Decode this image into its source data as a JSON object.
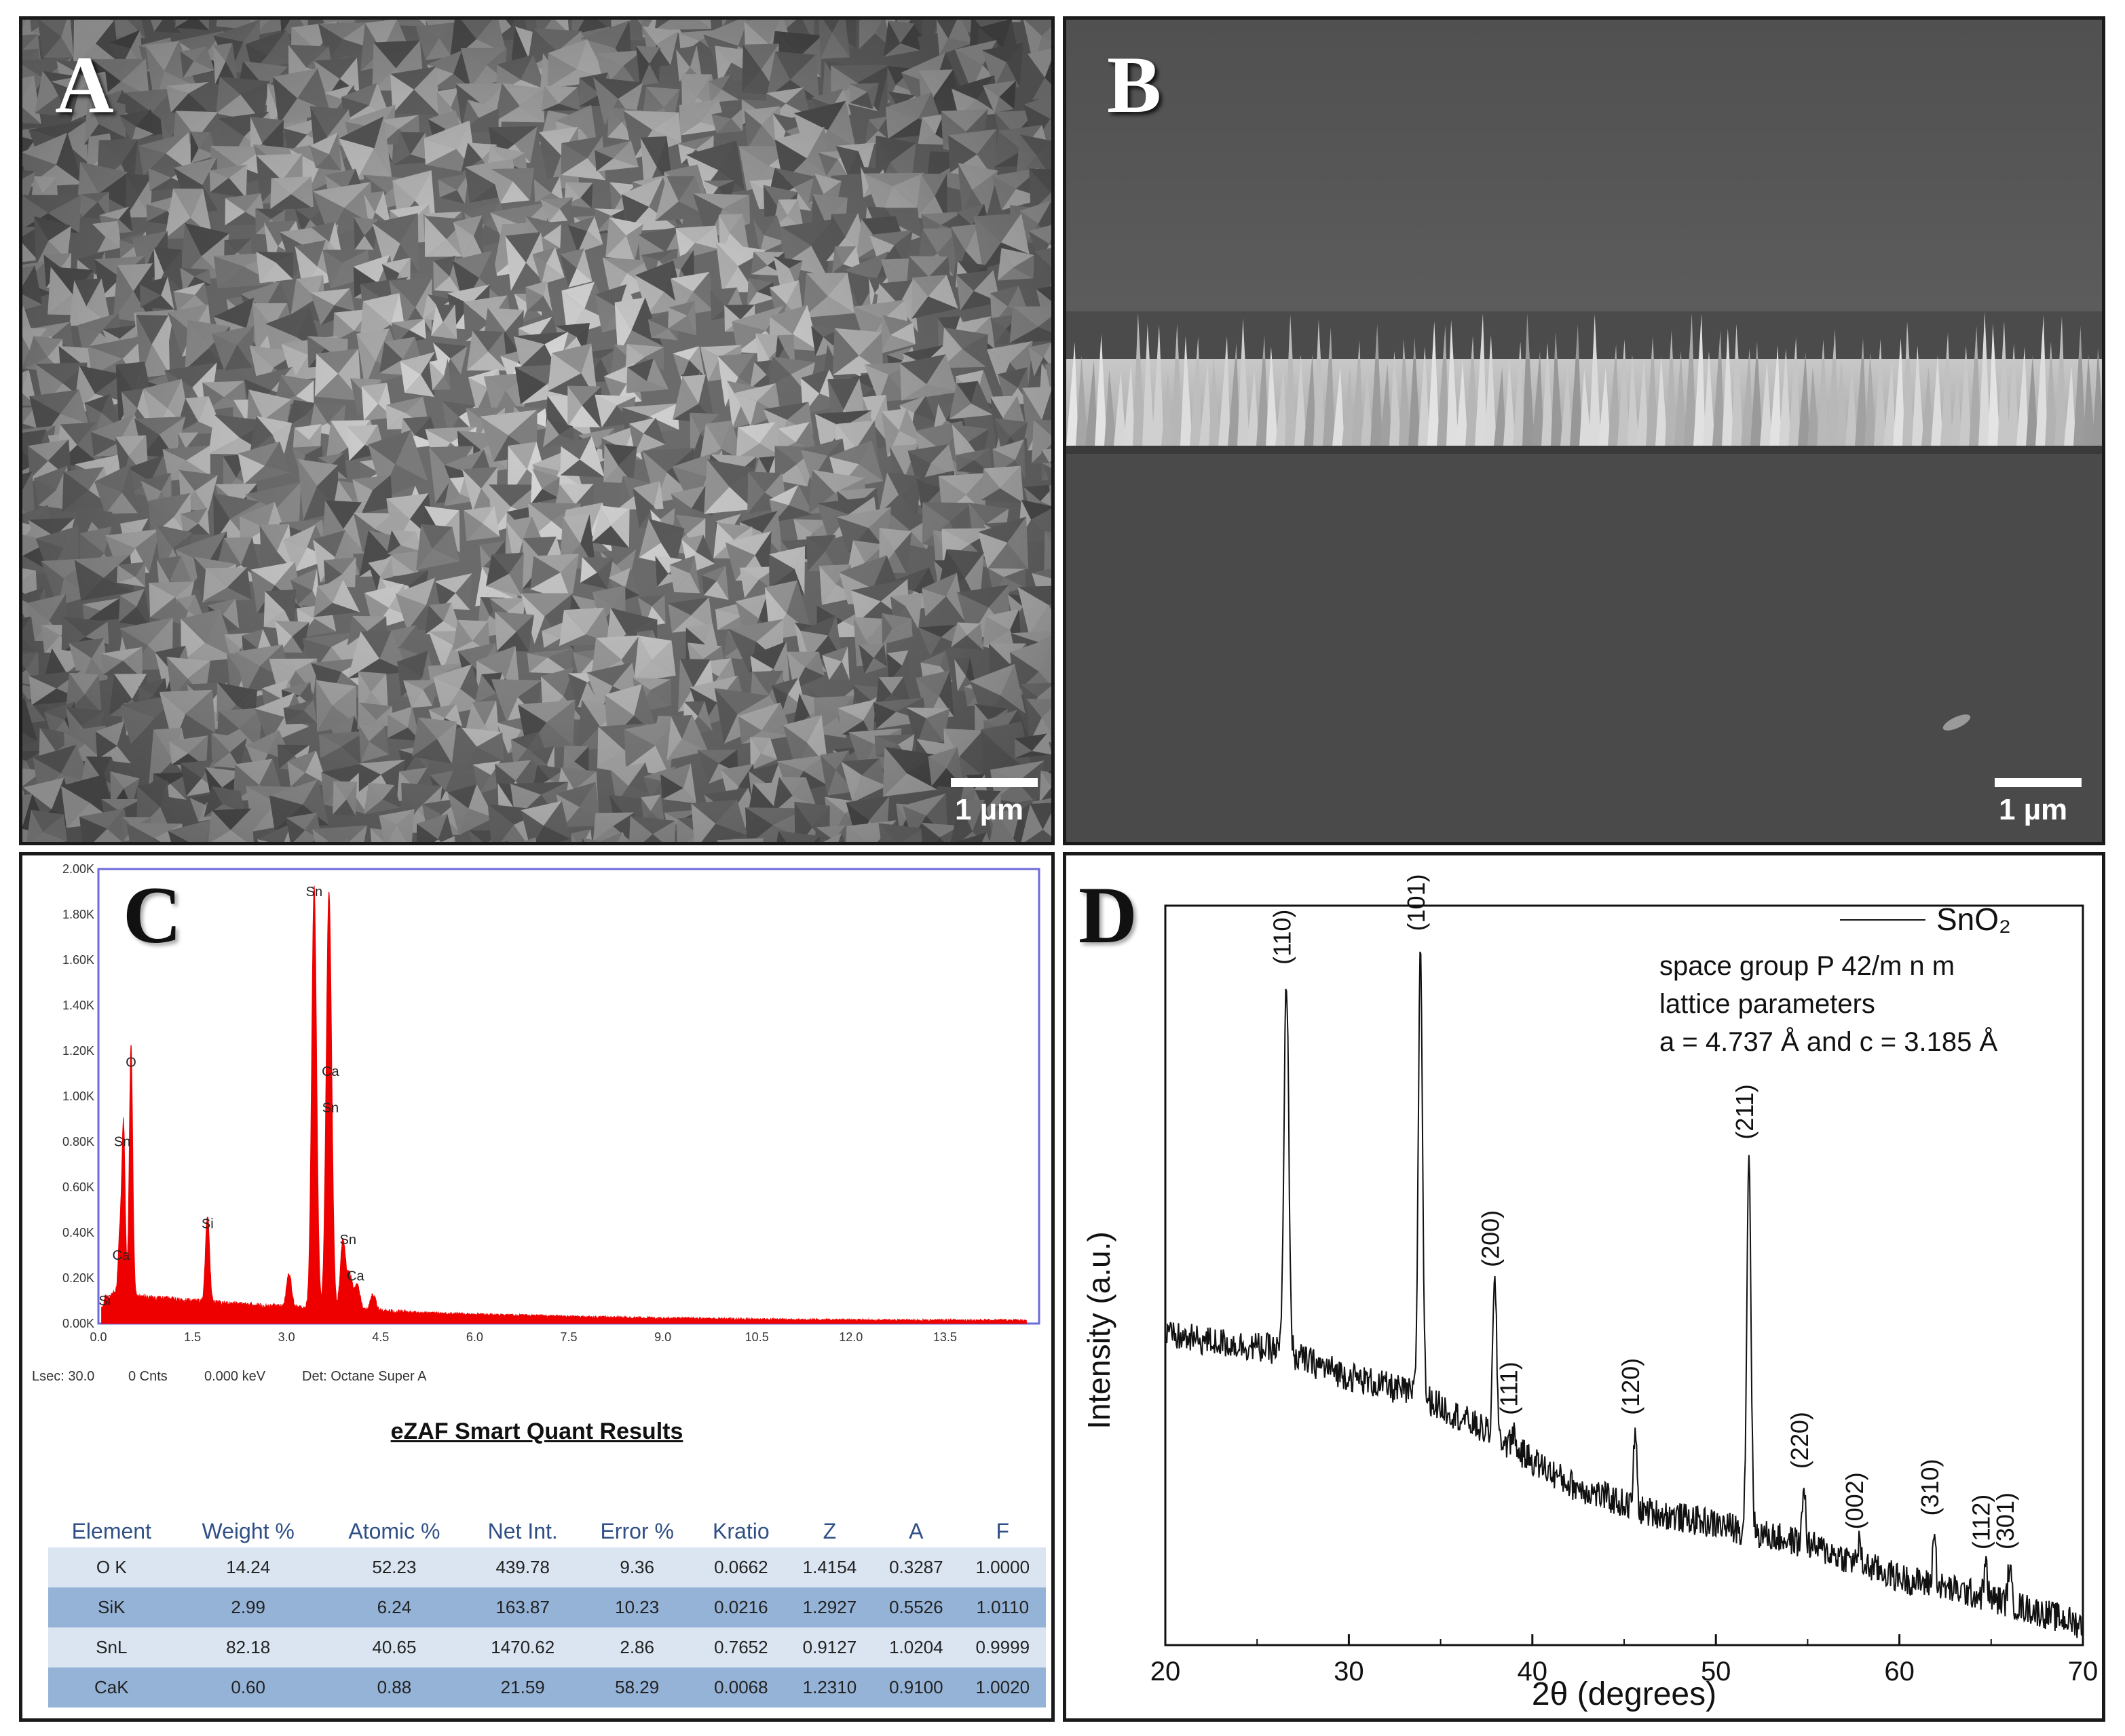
{
  "panels": {
    "a": {
      "letter": "A",
      "scale_bar": "1 µm"
    },
    "b": {
      "letter": "B",
      "scale_bar": "1 µm"
    },
    "c": {
      "letter": "C"
    },
    "d": {
      "letter": "D"
    }
  },
  "eds": {
    "status": {
      "lsec": "Lsec: 30.0",
      "cnts": "0 Cnts",
      "kev": "0.000 keV",
      "det": "Det: Octane Super A"
    },
    "quant_title": "eZAF Smart Quant Results",
    "columns": [
      "Element",
      "Weight %",
      "Atomic %",
      "Net Int.",
      "Error %",
      "Kratio",
      "Z",
      "A",
      "F"
    ],
    "rows": [
      [
        "O K",
        "14.24",
        "52.23",
        "439.78",
        "9.36",
        "0.0662",
        "1.4154",
        "0.3287",
        "1.0000"
      ],
      [
        "SiK",
        "2.99",
        "6.24",
        "163.87",
        "10.23",
        "0.0216",
        "1.2927",
        "0.5526",
        "1.0110"
      ],
      [
        "SnL",
        "82.18",
        "40.65",
        "1470.62",
        "2.86",
        "0.7652",
        "0.9127",
        "1.0204",
        "0.9999"
      ],
      [
        "CaK",
        "0.60",
        "0.88",
        "21.59",
        "58.29",
        "0.0068",
        "1.2310",
        "0.9100",
        "1.0020"
      ]
    ]
  },
  "colors": {
    "eds_fill": "#ee0000",
    "plot_frame": "#6b6bd9",
    "row_light": "#dbe5f1",
    "row_dark": "#95b3d7",
    "header_text": "#2f4f86"
  },
  "chart_data": [
    {
      "type": "area",
      "name": "EDS spectrum",
      "xlim": [
        0.0,
        15.0
      ],
      "ylim": [
        0,
        2000
      ],
      "x_ticks": [
        "0.0",
        "1.5",
        "3.0",
        "4.5",
        "6.0",
        "7.5",
        "9.0",
        "10.5",
        "12.0",
        "13.5"
      ],
      "x_tick_values": [
        0,
        1.5,
        3.0,
        4.5,
        6.0,
        7.5,
        9.0,
        10.5,
        12.0,
        13.5
      ],
      "y_ticks": [
        "0.00K",
        "0.20K",
        "0.40K",
        "0.60K",
        "0.80K",
        "1.00K",
        "1.20K",
        "1.40K",
        "1.60K",
        "1.80K",
        "2.00K"
      ],
      "y_tick_values": [
        0,
        200,
        400,
        600,
        800,
        1000,
        1200,
        1400,
        1600,
        1800,
        2000
      ],
      "peaks": [
        {
          "label": "Si",
          "x": 0.12,
          "y": 40
        },
        {
          "label": "Ca",
          "x": 0.34,
          "y": 250
        },
        {
          "label": "Sn",
          "x": 0.4,
          "y": 750
        },
        {
          "label": "O",
          "x": 0.52,
          "y": 1100
        },
        {
          "label": "Si",
          "x": 1.74,
          "y": 380
        },
        {
          "label": "",
          "x": 3.04,
          "y": 150
        },
        {
          "label": "Sn",
          "x": 3.44,
          "y": 1850
        },
        {
          "label": "Ca",
          "x": 3.69,
          "y": 1060
        },
        {
          "label": "Sn",
          "x": 3.66,
          "y": 900
        },
        {
          "label": "Sn",
          "x": 3.9,
          "y": 310
        },
        {
          "label": "Ca",
          "x": 4.01,
          "y": 150
        },
        {
          "label": "",
          "x": 4.13,
          "y": 110
        },
        {
          "label": "",
          "x": 4.38,
          "y": 70
        }
      ],
      "label_positions": [
        {
          "label": "Si",
          "x": 0.1,
          "y": 80
        },
        {
          "label": "Ca",
          "x": 0.36,
          "y": 280
        },
        {
          "label": "Sn",
          "x": 0.38,
          "y": 780
        },
        {
          "label": "O",
          "x": 0.52,
          "y": 1130
        },
        {
          "label": "Si",
          "x": 1.74,
          "y": 420
        },
        {
          "label": "Sn",
          "x": 3.44,
          "y": 1880
        },
        {
          "label": "Ca",
          "x": 3.7,
          "y": 1090
        },
        {
          "label": "Sn",
          "x": 3.7,
          "y": 930
        },
        {
          "label": "Sn",
          "x": 3.98,
          "y": 350
        },
        {
          "label": "Ca",
          "x": 4.1,
          "y": 190
        }
      ]
    },
    {
      "type": "line",
      "name": "XRD pattern",
      "xlabel": "2θ (degrees)",
      "ylabel": "Intensity (a.u.)",
      "xlim": [
        20,
        70
      ],
      "x_ticks": [
        20,
        30,
        40,
        50,
        60,
        70
      ],
      "y_range_relative": [
        0,
        1.1
      ],
      "legend": {
        "series": "SnO₂",
        "position": "top-right"
      },
      "annotation": [
        "space group P 42/m n m",
        "lattice parameters",
        "a = 4.737 Å and c = 3.185 Å"
      ],
      "baseline": [
        [
          20,
          0.46
        ],
        [
          26,
          0.44
        ],
        [
          30,
          0.4
        ],
        [
          34,
          0.37
        ],
        [
          38,
          0.31
        ],
        [
          42,
          0.24
        ],
        [
          46,
          0.2
        ],
        [
          50,
          0.18
        ],
        [
          55,
          0.15
        ],
        [
          60,
          0.1
        ],
        [
          65,
          0.07
        ],
        [
          70,
          0.03
        ]
      ],
      "peaks": [
        {
          "hkl": "(110)",
          "x": 26.6,
          "y": 0.99,
          "width": 0.18
        },
        {
          "hkl": "(101)",
          "x": 33.9,
          "y": 1.04,
          "width": 0.16
        },
        {
          "hkl": "(200)",
          "x": 37.95,
          "y": 0.54,
          "width": 0.15
        },
        {
          "hkl": "(111)",
          "x": 38.95,
          "y": 0.32,
          "width": 0.13
        },
        {
          "hkl": "(120)",
          "x": 45.6,
          "y": 0.32,
          "width": 0.12
        },
        {
          "hkl": "(211)",
          "x": 51.8,
          "y": 0.73,
          "width": 0.16
        },
        {
          "hkl": "(220)",
          "x": 54.8,
          "y": 0.24,
          "width": 0.12
        },
        {
          "hkl": "(002)",
          "x": 57.8,
          "y": 0.15,
          "width": 0.12
        },
        {
          "hkl": "(310)",
          "x": 61.9,
          "y": 0.17,
          "width": 0.12
        },
        {
          "hkl": "(112)",
          "x": 64.7,
          "y": 0.12,
          "width": 0.12
        },
        {
          "hkl": "(301)",
          "x": 66.0,
          "y": 0.12,
          "width": 0.12
        }
      ]
    }
  ]
}
